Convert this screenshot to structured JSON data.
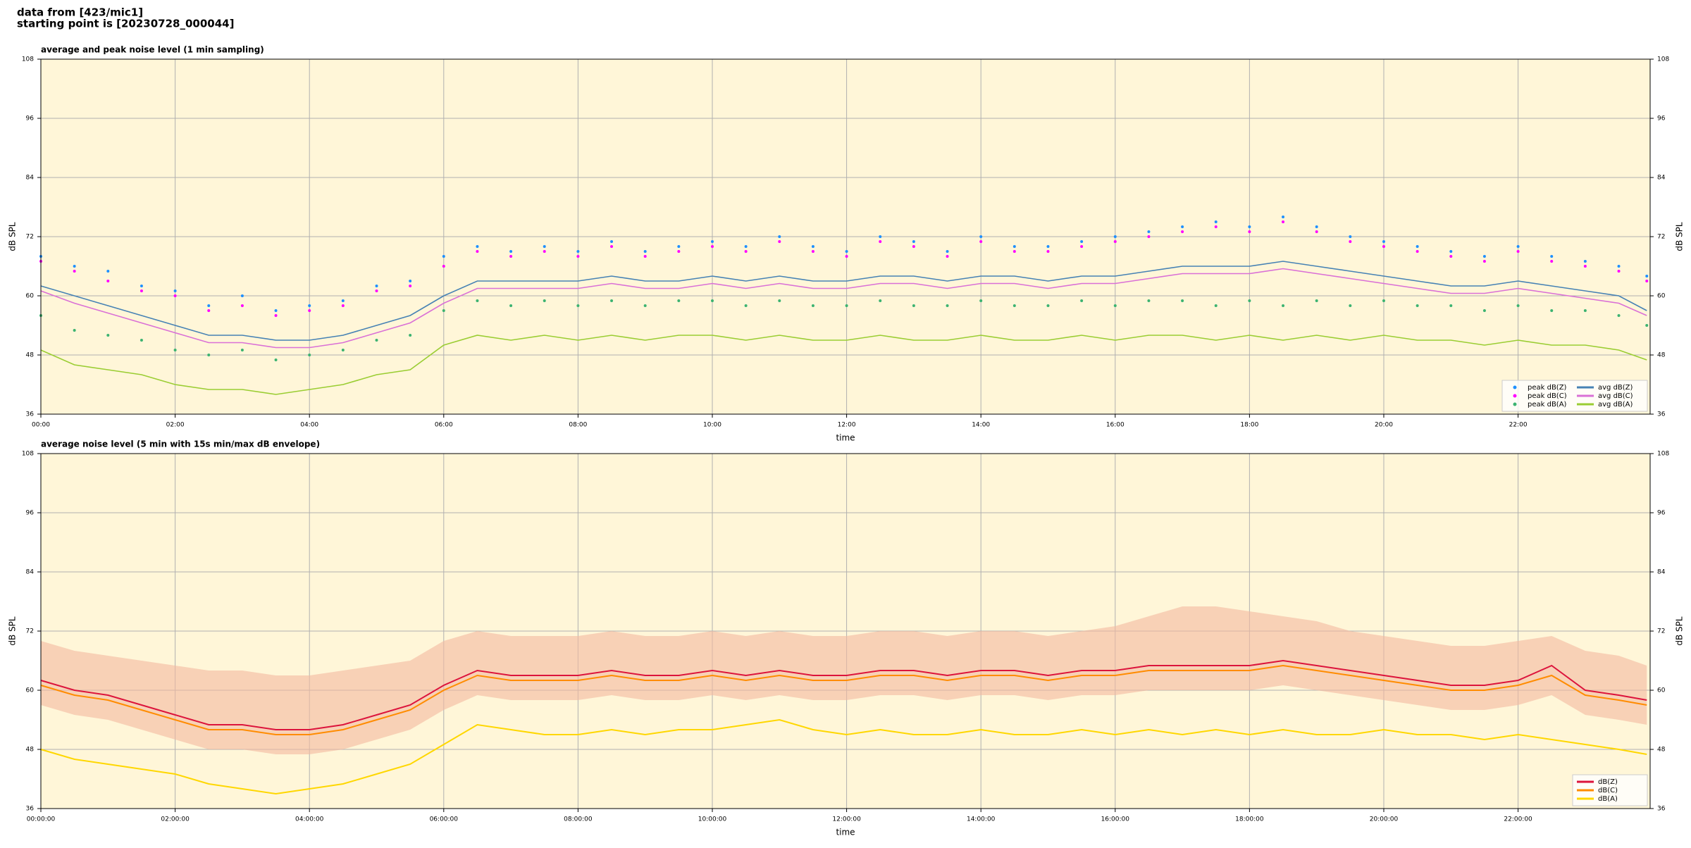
{
  "header": {
    "lines": [
      "data from [423/mic1]",
      "starting point is [20230728_000044]"
    ]
  },
  "chart_data": [
    {
      "type": "line",
      "title": "average and peak noise level (1 min sampling)",
      "xlabel": "time",
      "ylabel": "dB SPL",
      "y2label": "dB SPL",
      "background": "#fff6d8",
      "grid": true,
      "legend": "lower right",
      "legend_columns": 2,
      "x": [
        "00:00",
        "00:30",
        "01:00",
        "01:30",
        "02:00",
        "02:30",
        "03:00",
        "03:30",
        "04:00",
        "04:30",
        "05:00",
        "05:30",
        "06:00",
        "06:30",
        "07:00",
        "07:30",
        "08:00",
        "08:30",
        "09:00",
        "09:30",
        "10:00",
        "10:30",
        "11:00",
        "11:30",
        "12:00",
        "12:30",
        "13:00",
        "13:30",
        "14:00",
        "14:30",
        "15:00",
        "15:30",
        "16:00",
        "16:30",
        "17:00",
        "17:30",
        "18:00",
        "18:30",
        "19:00",
        "19:30",
        "20:00",
        "20:30",
        "21:00",
        "21:30",
        "22:00",
        "22:30",
        "23:00",
        "23:30",
        "23:55"
      ],
      "xlim": [
        "00:00",
        "23:58"
      ],
      "xticks": [
        "00:00",
        "02:00",
        "04:00",
        "06:00",
        "08:00",
        "10:00",
        "12:00",
        "14:00",
        "16:00",
        "18:00",
        "20:00",
        "22:00"
      ],
      "ylim": [
        36,
        108
      ],
      "yticks": [
        36,
        48,
        60,
        72,
        84,
        96,
        108
      ],
      "y2lim": [
        36,
        108
      ],
      "y2ticks": [
        36,
        48,
        60,
        72,
        84,
        96,
        108
      ],
      "series": [
        {
          "name": "peak dB(Z)",
          "kind": "scatter",
          "color": "#1e90ff",
          "values": [
            68,
            66,
            65,
            62,
            61,
            58,
            60,
            57,
            58,
            59,
            62,
            63,
            68,
            70,
            69,
            70,
            69,
            71,
            69,
            70,
            71,
            70,
            72,
            70,
            69,
            72,
            71,
            69,
            72,
            70,
            70,
            71,
            72,
            73,
            74,
            75,
            74,
            76,
            74,
            72,
            71,
            70,
            69,
            68,
            70,
            68,
            67,
            66,
            64
          ]
        },
        {
          "name": "peak dB(C)",
          "kind": "scatter",
          "color": "#ff00ff",
          "values": [
            67,
            65,
            63,
            61,
            60,
            57,
            58,
            56,
            57,
            58,
            61,
            62,
            66,
            69,
            68,
            69,
            68,
            70,
            68,
            69,
            70,
            69,
            71,
            69,
            68,
            71,
            70,
            68,
            71,
            69,
            69,
            70,
            71,
            72,
            73,
            74,
            73,
            75,
            73,
            71,
            70,
            69,
            68,
            67,
            69,
            67,
            66,
            65,
            63
          ]
        },
        {
          "name": "peak dB(A)",
          "kind": "scatter",
          "color": "#3cb371",
          "values": [
            56,
            53,
            52,
            51,
            49,
            48,
            49,
            47,
            48,
            49,
            51,
            52,
            57,
            59,
            58,
            59,
            58,
            59,
            58,
            59,
            59,
            58,
            59,
            58,
            58,
            59,
            58,
            58,
            59,
            58,
            58,
            59,
            58,
            59,
            59,
            58,
            59,
            58,
            59,
            58,
            59,
            58,
            58,
            57,
            58,
            57,
            57,
            56,
            54
          ]
        },
        {
          "name": "avg dB(Z)",
          "kind": "line",
          "color": "#4682b4",
          "values": [
            62,
            60,
            58,
            56,
            54,
            52,
            52,
            51,
            51,
            52,
            54,
            56,
            60,
            63,
            63,
            63,
            63,
            64,
            63,
            63,
            64,
            63,
            64,
            63,
            63,
            64,
            64,
            63,
            64,
            64,
            63,
            64,
            64,
            65,
            66,
            66,
            66,
            67,
            66,
            65,
            64,
            63,
            62,
            62,
            63,
            62,
            61,
            60,
            57
          ]
        },
        {
          "name": "avg dB(C)",
          "kind": "line",
          "color": "#da70d6",
          "values": [
            61,
            58.5,
            56.5,
            54.5,
            52.5,
            50.5,
            50.5,
            49.5,
            49.5,
            50.5,
            52.5,
            54.5,
            58.5,
            61.5,
            61.5,
            61.5,
            61.5,
            62.5,
            61.5,
            61.5,
            62.5,
            61.5,
            62.5,
            61.5,
            61.5,
            62.5,
            62.5,
            61.5,
            62.5,
            62.5,
            61.5,
            62.5,
            62.5,
            63.5,
            64.5,
            64.5,
            64.5,
            65.5,
            64.5,
            63.5,
            62.5,
            61.5,
            60.5,
            60.5,
            61.5,
            60.5,
            59.5,
            58.5,
            56
          ]
        },
        {
          "name": "avg dB(A)",
          "kind": "line",
          "color": "#9acd32",
          "values": [
            49,
            46,
            45,
            44,
            42,
            41,
            41,
            40,
            41,
            42,
            44,
            45,
            50,
            52,
            51,
            52,
            51,
            52,
            51,
            52,
            52,
            51,
            52,
            51,
            51,
            52,
            51,
            51,
            52,
            51,
            51,
            52,
            51,
            52,
            52,
            51,
            52,
            51,
            52,
            51,
            52,
            51,
            51,
            50,
            51,
            50,
            50,
            49,
            47
          ]
        }
      ]
    },
    {
      "type": "line",
      "title": "average noise level (5 min with 15s min/max dB envelope)",
      "xlabel": "time",
      "ylabel": "dB SPL",
      "y2label": "dB SPL",
      "background": "#fff6d8",
      "grid": true,
      "legend": "lower right",
      "legend_columns": 1,
      "x": [
        "00:00",
        "00:30",
        "01:00",
        "01:30",
        "02:00",
        "02:30",
        "03:00",
        "03:30",
        "04:00",
        "04:30",
        "05:00",
        "05:30",
        "06:00",
        "06:30",
        "07:00",
        "07:30",
        "08:00",
        "08:30",
        "09:00",
        "09:30",
        "10:00",
        "10:30",
        "11:00",
        "11:30",
        "12:00",
        "12:30",
        "13:00",
        "13:30",
        "14:00",
        "14:30",
        "15:00",
        "15:30",
        "16:00",
        "16:30",
        "17:00",
        "17:30",
        "18:00",
        "18:30",
        "19:00",
        "19:30",
        "20:00",
        "20:30",
        "21:00",
        "21:30",
        "22:00",
        "22:30",
        "23:00",
        "23:30",
        "23:55"
      ],
      "xlim": [
        "00:00",
        "23:58"
      ],
      "xticks": [
        {
          "value": "00:00",
          "label": "00:00:00"
        },
        {
          "value": "02:00",
          "label": "02:00:00"
        },
        {
          "value": "04:00",
          "label": "04:00:00"
        },
        {
          "value": "06:00",
          "label": "06:00:00"
        },
        {
          "value": "08:00",
          "label": "08:00:00"
        },
        {
          "value": "10:00",
          "label": "10:00:00"
        },
        {
          "value": "12:00",
          "label": "12:00:00"
        },
        {
          "value": "14:00",
          "label": "14:00:00"
        },
        {
          "value": "16:00",
          "label": "16:00:00"
        },
        {
          "value": "18:00",
          "label": "18:00:00"
        },
        {
          "value": "20:00",
          "label": "20:00:00"
        },
        {
          "value": "22:00",
          "label": "22:00:00"
        }
      ],
      "ylim": [
        36,
        108
      ],
      "yticks": [
        36,
        48,
        60,
        72,
        84,
        96,
        108
      ],
      "y2lim": [
        36,
        108
      ],
      "y2ticks": [
        36,
        48,
        60,
        72,
        84,
        96,
        108
      ],
      "envelope": {
        "color": "#f4b9a0",
        "low": [
          57,
          55,
          54,
          52,
          50,
          48,
          48,
          47,
          47,
          48,
          50,
          52,
          56,
          59,
          58,
          58,
          58,
          59,
          58,
          58,
          59,
          58,
          59,
          58,
          58,
          59,
          59,
          58,
          59,
          59,
          58,
          59,
          59,
          60,
          60,
          60,
          60,
          61,
          60,
          59,
          58,
          57,
          56,
          56,
          57,
          59,
          55,
          54,
          53
        ],
        "high": [
          70,
          68,
          67,
          66,
          65,
          64,
          64,
          63,
          63,
          64,
          65,
          66,
          70,
          72,
          71,
          71,
          71,
          72,
          71,
          71,
          72,
          71,
          72,
          71,
          71,
          72,
          72,
          71,
          72,
          72,
          71,
          72,
          73,
          75,
          77,
          77,
          76,
          75,
          74,
          72,
          71,
          70,
          69,
          69,
          70,
          71,
          68,
          67,
          65
        ]
      },
      "series": [
        {
          "name": "dB(Z)",
          "kind": "line",
          "color": "#dc143c",
          "values": [
            62,
            60,
            59,
            57,
            55,
            53,
            53,
            52,
            52,
            53,
            55,
            57,
            61,
            64,
            63,
            63,
            63,
            64,
            63,
            63,
            64,
            63,
            64,
            63,
            63,
            64,
            64,
            63,
            64,
            64,
            63,
            64,
            64,
            65,
            65,
            65,
            65,
            66,
            65,
            64,
            63,
            62,
            61,
            61,
            62,
            65,
            60,
            59,
            58
          ]
        },
        {
          "name": "dB(C)",
          "kind": "line",
          "color": "#ff8c00",
          "values": [
            61,
            59,
            58,
            56,
            54,
            52,
            52,
            51,
            51,
            52,
            54,
            56,
            60,
            63,
            62,
            62,
            62,
            63,
            62,
            62,
            63,
            62,
            63,
            62,
            62,
            63,
            63,
            62,
            63,
            63,
            62,
            63,
            63,
            64,
            64,
            64,
            64,
            65,
            64,
            63,
            62,
            61,
            60,
            60,
            61,
            63,
            59,
            58,
            57
          ]
        },
        {
          "name": "dB(A)",
          "kind": "line",
          "color": "#ffd700",
          "values": [
            48,
            46,
            45,
            44,
            43,
            41,
            40,
            39,
            40,
            41,
            43,
            45,
            49,
            53,
            52,
            51,
            51,
            52,
            51,
            52,
            52,
            53,
            54,
            52,
            51,
            52,
            51,
            51,
            52,
            51,
            51,
            52,
            51,
            52,
            51,
            52,
            51,
            52,
            51,
            51,
            52,
            51,
            51,
            50,
            51,
            50,
            49,
            48,
            47
          ]
        }
      ]
    }
  ]
}
